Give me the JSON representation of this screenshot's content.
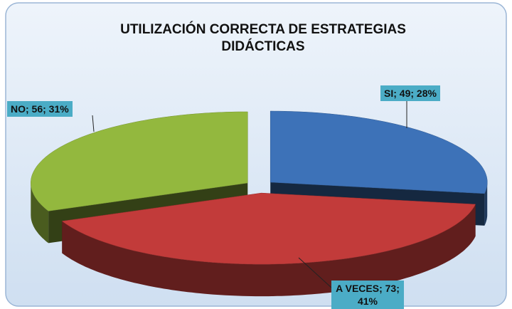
{
  "chart_data": {
    "type": "pie3d",
    "title": "UTILIZACIÓN CORRECTA DE ESTRATEGIAS DIDÁCTICAS",
    "categories": [
      "SI",
      "A VECES",
      "NO"
    ],
    "values": [
      49,
      73,
      56
    ],
    "value_labels": [
      "SI; 49; 28%",
      "A VECES; 73; 41%",
      "NO; 56; 31%"
    ],
    "colors": [
      "#3d72b8",
      "#c23b3a",
      "#93b83e"
    ]
  }
}
